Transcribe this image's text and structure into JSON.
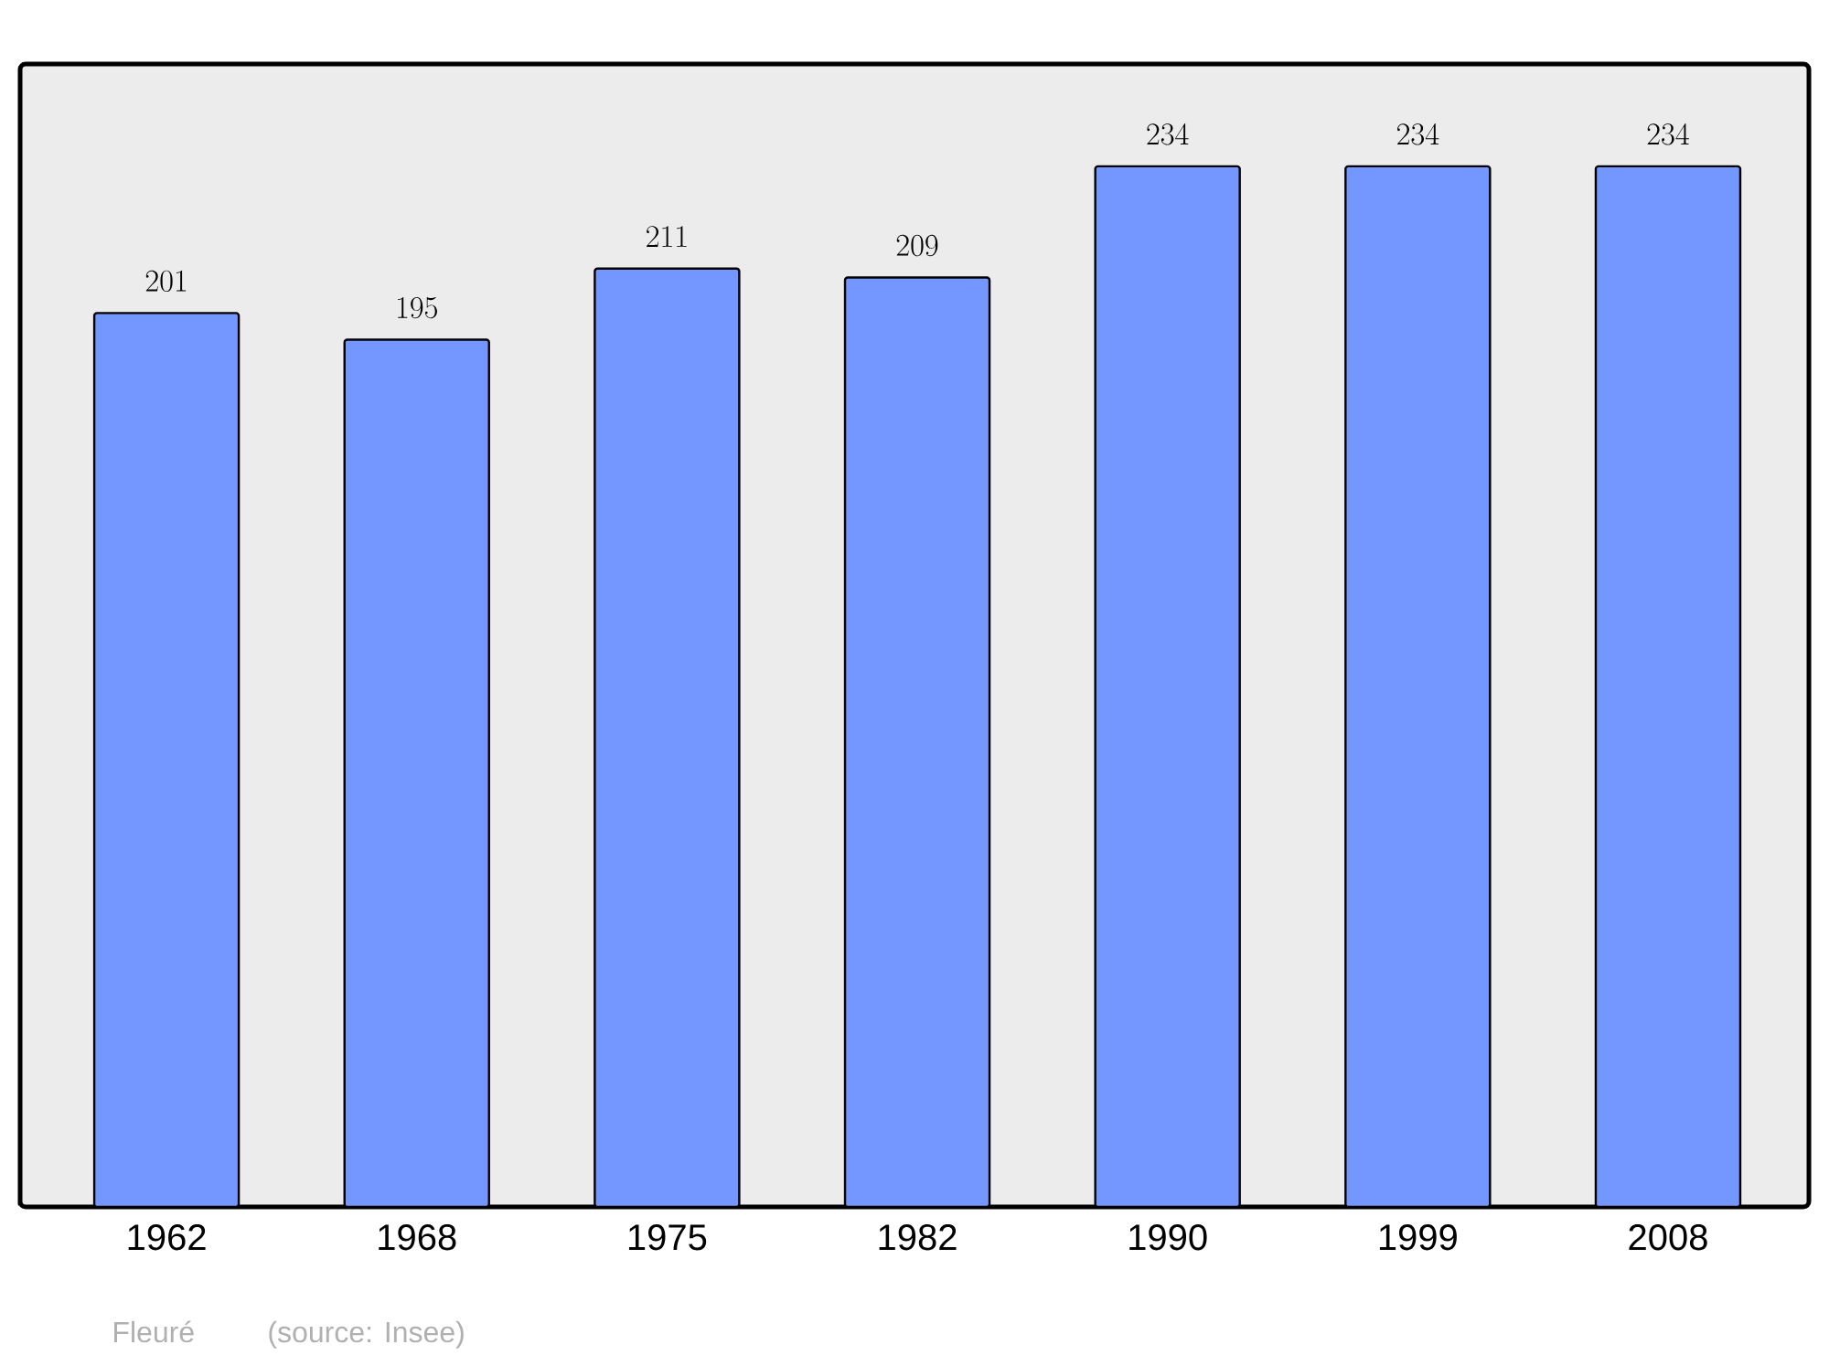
{
  "chart_data": {
    "type": "bar",
    "categories": [
      "1962",
      "1968",
      "1975",
      "1982",
      "1990",
      "1999",
      "2008"
    ],
    "values": [
      201,
      195,
      211,
      209,
      234,
      234,
      234
    ],
    "color": "#7497ff",
    "ylim": [
      0,
      257
    ],
    "data_labels": true,
    "tick_labels": "x",
    "annotations": [
      "Fleuré",
      "(source: Insee)"
    ]
  }
}
